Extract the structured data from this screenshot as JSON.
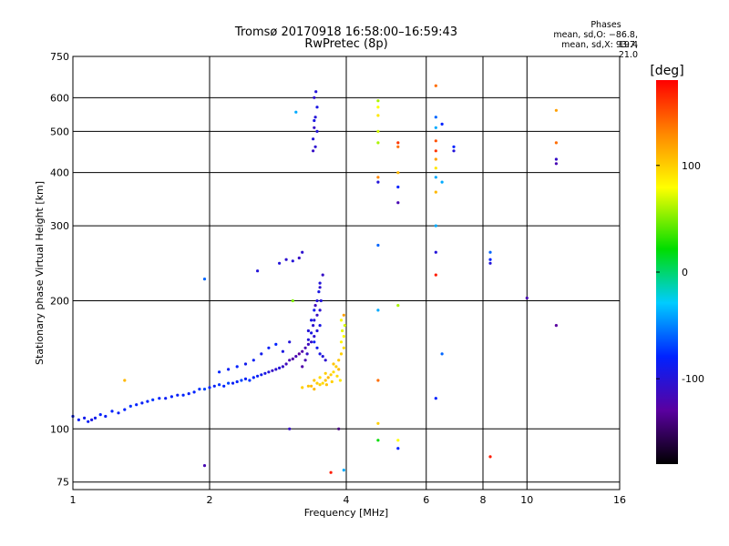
{
  "chart_data": {
    "type": "scatter",
    "title": "Tromsø 20170918 16:58:00–16:59:43",
    "subtitle": "RwPretec (8p)",
    "stats": {
      "heading": "Phases",
      "line1": "mean, sd,O: −86.8, 19.4",
      "line2": "mean, sd,X:  93.7, 21.0"
    },
    "xlabel": "Frequency [MHz]",
    "ylabel": "Stationary phase Virtual Height [km]",
    "xscale": "log",
    "yscale": "log",
    "xlim": [
      1,
      16
    ],
    "ylim": [
      72,
      750
    ],
    "xticks": [
      1,
      2,
      4,
      6,
      8,
      10,
      16
    ],
    "xtick_labels": [
      "1",
      "2",
      "4",
      "6",
      "8",
      "10",
      "16"
    ],
    "yticks": [
      75,
      100,
      200,
      300,
      400,
      500,
      600,
      750
    ],
    "ytick_labels": [
      "75",
      "100",
      "200",
      "300",
      "400",
      "500",
      "600",
      "750"
    ],
    "grid": true,
    "colorbar": {
      "label": "[deg]",
      "range": [
        -180,
        180
      ],
      "ticks": [
        100,
        0,
        -100
      ],
      "tick_labels": [
        "100",
        "0",
        "-100"
      ]
    },
    "series": [
      {
        "name": "O-mode trace (blue/purple)",
        "points": [
          [
            1.0,
            107,
            -85
          ],
          [
            1.03,
            105,
            -85
          ],
          [
            1.06,
            106,
            -90
          ],
          [
            1.08,
            104,
            -85
          ],
          [
            1.1,
            105,
            -95
          ],
          [
            1.12,
            106,
            -90
          ],
          [
            1.15,
            108,
            -80
          ],
          [
            1.18,
            107,
            -85
          ],
          [
            1.22,
            110,
            -80
          ],
          [
            1.26,
            109,
            -85
          ],
          [
            1.3,
            111,
            -80
          ],
          [
            1.34,
            113,
            -75
          ],
          [
            1.38,
            114,
            -80
          ],
          [
            1.42,
            115,
            -85
          ],
          [
            1.46,
            116,
            -80
          ],
          [
            1.5,
            117,
            -75
          ],
          [
            1.55,
            118,
            -80
          ],
          [
            1.6,
            118,
            -85
          ],
          [
            1.65,
            119,
            -80
          ],
          [
            1.7,
            120,
            -85
          ],
          [
            1.75,
            120,
            -80
          ],
          [
            1.8,
            121,
            -85
          ],
          [
            1.85,
            122,
            -80
          ],
          [
            1.9,
            124,
            -75
          ],
          [
            1.95,
            124,
            -70
          ],
          [
            2.0,
            125,
            -80
          ],
          [
            2.05,
            126,
            -85
          ],
          [
            2.1,
            127,
            -75
          ],
          [
            2.15,
            126,
            -80
          ],
          [
            2.2,
            128,
            -70
          ],
          [
            2.25,
            128,
            -85
          ],
          [
            2.3,
            129,
            -80
          ],
          [
            2.35,
            130,
            -70
          ],
          [
            2.4,
            131,
            -85
          ],
          [
            2.45,
            130,
            -75
          ],
          [
            2.5,
            132,
            -80
          ],
          [
            2.55,
            133,
            -85
          ],
          [
            2.6,
            134,
            -90
          ],
          [
            2.65,
            135,
            -95
          ],
          [
            2.7,
            136,
            -100
          ],
          [
            2.75,
            137,
            -110
          ],
          [
            2.8,
            138,
            -105
          ],
          [
            2.85,
            139,
            -100
          ],
          [
            2.9,
            140,
            -110
          ],
          [
            2.95,
            142,
            -115
          ],
          [
            3.0,
            145,
            -120
          ],
          [
            3.05,
            146,
            -125
          ],
          [
            3.1,
            148,
            -120
          ],
          [
            3.15,
            150,
            -130
          ],
          [
            3.2,
            152,
            -125
          ],
          [
            3.25,
            155,
            -120
          ],
          [
            3.3,
            158,
            -115
          ],
          [
            3.35,
            160,
            -110
          ],
          [
            3.4,
            165,
            -105
          ],
          [
            3.45,
            170,
            -100
          ],
          [
            3.5,
            175,
            -95
          ],
          [
            3.4,
            180,
            -100
          ],
          [
            3.45,
            185,
            -110
          ],
          [
            3.5,
            190,
            -105
          ],
          [
            3.52,
            200,
            -100
          ],
          [
            3.48,
            210,
            -95
          ],
          [
            3.5,
            220,
            -100
          ],
          [
            3.55,
            230,
            -110
          ],
          [
            3.42,
            195,
            -115
          ],
          [
            3.38,
            175,
            -105
          ],
          [
            3.35,
            168,
            -95
          ],
          [
            3.3,
            162,
            -100
          ],
          [
            3.28,
            150,
            -110
          ],
          [
            3.25,
            145,
            -120
          ],
          [
            3.2,
            140,
            -125
          ],
          [
            3.4,
            160,
            -85
          ],
          [
            3.45,
            155,
            -90
          ],
          [
            3.5,
            150,
            -95
          ],
          [
            3.55,
            148,
            -100
          ],
          [
            3.6,
            145,
            -105
          ],
          [
            3.3,
            170,
            -100
          ],
          [
            3.35,
            180,
            -95
          ],
          [
            3.4,
            190,
            -90
          ],
          [
            3.45,
            200,
            -100
          ],
          [
            3.5,
            215,
            -105
          ],
          [
            2.6,
            150,
            -90
          ],
          [
            2.7,
            155,
            -85
          ],
          [
            2.8,
            158,
            -80
          ],
          [
            2.9,
            152,
            -95
          ],
          [
            3.0,
            160,
            -100
          ],
          [
            2.5,
            145,
            -85
          ],
          [
            2.4,
            142,
            -90
          ],
          [
            2.3,
            140,
            -80
          ],
          [
            2.2,
            138,
            -85
          ],
          [
            2.1,
            136,
            -80
          ],
          [
            2.85,
            245,
            -100
          ],
          [
            2.95,
            250,
            -105
          ],
          [
            3.05,
            248,
            -100
          ],
          [
            3.15,
            252,
            -110
          ],
          [
            3.2,
            260,
            -105
          ],
          [
            2.55,
            235,
            -100
          ],
          [
            3.38,
            480,
            -100
          ],
          [
            3.4,
            510,
            -110
          ],
          [
            3.42,
            540,
            -100
          ],
          [
            3.45,
            570,
            -95
          ],
          [
            3.4,
            600,
            -105
          ],
          [
            3.43,
            620,
            -100
          ],
          [
            3.38,
            450,
            -110
          ],
          [
            3.42,
            460,
            -105
          ],
          [
            3.45,
            500,
            -100
          ],
          [
            3.4,
            530,
            -95
          ]
        ]
      },
      {
        "name": "X-mode trace (yellow/green)",
        "points": [
          [
            3.2,
            125,
            100
          ],
          [
            3.3,
            126,
            105
          ],
          [
            3.4,
            124,
            110
          ],
          [
            3.5,
            127,
            100
          ],
          [
            3.55,
            128,
            95
          ],
          [
            3.6,
            130,
            105
          ],
          [
            3.65,
            132,
            110
          ],
          [
            3.7,
            134,
            100
          ],
          [
            3.75,
            136,
            95
          ],
          [
            3.8,
            140,
            100
          ],
          [
            3.85,
            145,
            105
          ],
          [
            3.9,
            150,
            100
          ],
          [
            3.95,
            155,
            95
          ],
          [
            3.9,
            160,
            85
          ],
          [
            3.95,
            165,
            80
          ],
          [
            3.92,
            170,
            75
          ],
          [
            3.97,
            175,
            70
          ],
          [
            3.9,
            180,
            80
          ],
          [
            3.85,
            138,
            110
          ],
          [
            3.75,
            142,
            105
          ],
          [
            3.6,
            135,
            100
          ],
          [
            3.5,
            132,
            95
          ],
          [
            3.45,
            128,
            100
          ],
          [
            3.4,
            130,
            105
          ],
          [
            3.35,
            126,
            110
          ],
          [
            3.95,
            185,
            120
          ],
          [
            3.88,
            130,
            90
          ],
          [
            3.82,
            133,
            95
          ],
          [
            3.72,
            129,
            100
          ],
          [
            3.62,
            127,
            105
          ]
        ]
      },
      {
        "name": "scattered echoes",
        "points": [
          [
            4.7,
            590,
            60
          ],
          [
            4.7,
            570,
            80
          ],
          [
            4.7,
            545,
            90
          ],
          [
            4.7,
            500,
            70
          ],
          [
            4.7,
            470,
            60
          ],
          [
            4.7,
            390,
            130
          ],
          [
            4.7,
            380,
            -100
          ],
          [
            4.7,
            270,
            -60
          ],
          [
            4.7,
            190,
            -40
          ],
          [
            4.7,
            130,
            140
          ],
          [
            4.7,
            103,
            100
          ],
          [
            4.7,
            94,
            20
          ],
          [
            5.2,
            470,
            160
          ],
          [
            5.2,
            460,
            140
          ],
          [
            5.2,
            400,
            110
          ],
          [
            5.2,
            370,
            -80
          ],
          [
            5.2,
            340,
            -120
          ],
          [
            5.2,
            195,
            60
          ],
          [
            5.2,
            94,
            80
          ],
          [
            5.2,
            90,
            -80
          ],
          [
            6.3,
            640,
            140
          ],
          [
            6.3,
            540,
            -60
          ],
          [
            6.3,
            510,
            -40
          ],
          [
            6.3,
            475,
            150
          ],
          [
            6.3,
            450,
            160
          ],
          [
            6.3,
            430,
            120
          ],
          [
            6.3,
            410,
            90
          ],
          [
            6.3,
            390,
            -40
          ],
          [
            6.3,
            360,
            110
          ],
          [
            6.3,
            300,
            -40
          ],
          [
            6.3,
            260,
            -100
          ],
          [
            6.3,
            230,
            170
          ],
          [
            6.3,
            118,
            -80
          ],
          [
            6.5,
            520,
            -80
          ],
          [
            6.5,
            380,
            -40
          ],
          [
            6.5,
            150,
            -60
          ],
          [
            6.9,
            460,
            -80
          ],
          [
            6.9,
            450,
            -100
          ],
          [
            8.3,
            260,
            -60
          ],
          [
            8.3,
            250,
            -80
          ],
          [
            8.3,
            245,
            -100
          ],
          [
            8.3,
            86,
            170
          ],
          [
            10.0,
            203,
            -120
          ],
          [
            11.6,
            560,
            120
          ],
          [
            11.6,
            470,
            140
          ],
          [
            11.6,
            430,
            -110
          ],
          [
            11.6,
            420,
            -120
          ],
          [
            11.6,
            175,
            -130
          ],
          [
            3.1,
            555,
            -40
          ],
          [
            1.95,
            225,
            -60
          ],
          [
            1.3,
            130,
            110
          ],
          [
            3.0,
            100,
            -110
          ],
          [
            3.85,
            100,
            -140
          ],
          [
            3.7,
            79,
            170
          ],
          [
            3.95,
            80,
            -40
          ],
          [
            1.95,
            82,
            -120
          ],
          [
            3.05,
            200,
            50
          ]
        ]
      }
    ]
  }
}
